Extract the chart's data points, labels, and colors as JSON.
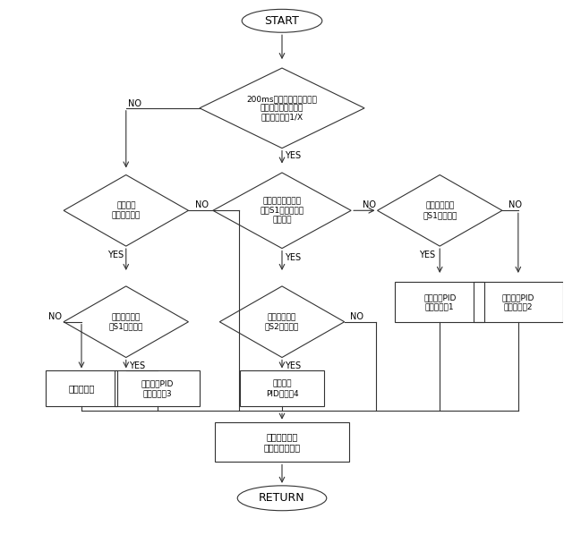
{
  "background_color": "#ffffff",
  "font": "DejaVu Sans",
  "nodes": {
    "start_text": "START",
    "d1_text": "200ms内热水温度的上升值\n是否大于设定温度和\n实际温度差的1/X",
    "d2_text": "热水温度\n是否开始下降",
    "d3_text": "是否处于温度下降\n大于S1度的全功率\n加热阶段",
    "d4_text": "接近设定温度\n在S1度范围内",
    "d5_text": "接近设定温度\n在S1度范围内",
    "d6_text": "接近设定温度\n在S2度范围内",
    "b1_text": "全功率加热",
    "b2_text": "重新设定PID\n加速参数側3",
    "b3_text": "重新设定\nPID参数側4",
    "b4_text": "重新设定PID\n慢速参数側1",
    "b5_text": "重新设定PID\n加速参数側2",
    "collect_text": "最近次采样的\n温度入循环队列",
    "return_text": "RETURN"
  }
}
